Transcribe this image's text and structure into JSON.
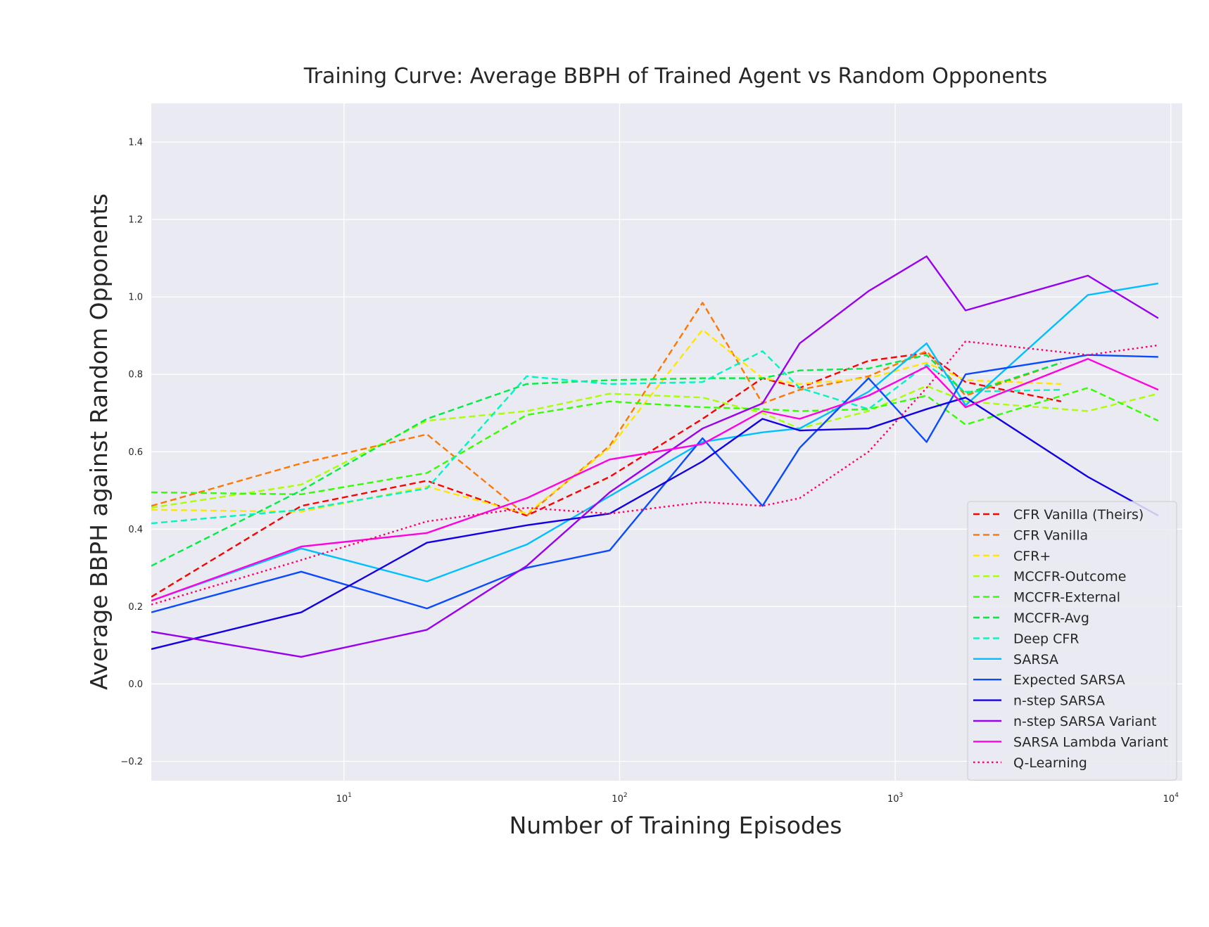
{
  "chart_data": {
    "type": "line",
    "title": "Training Curve: Average BBPH of Trained Agent vs Random Opponents",
    "xlabel": "Number of Training Episodes",
    "ylabel": "Average BBPH against Random Opponents",
    "xscale": "log",
    "xlim": [
      2,
      11000
    ],
    "ylim": [
      -0.25,
      1.5
    ],
    "xticks": [
      {
        "value": 10,
        "base": "10",
        "exp": "1"
      },
      {
        "value": 100,
        "base": "10",
        "exp": "2"
      },
      {
        "value": 1000,
        "base": "10",
        "exp": "3"
      },
      {
        "value": 10000,
        "base": "10",
        "exp": "4"
      }
    ],
    "yticks": [
      {
        "value": -0.2,
        "label": "−0.2"
      },
      {
        "value": 0.0,
        "label": "0.0"
      },
      {
        "value": 0.2,
        "label": "0.2"
      },
      {
        "value": 0.4,
        "label": "0.4"
      },
      {
        "value": 0.6,
        "label": "0.6"
      },
      {
        "value": 0.8,
        "label": "0.8"
      },
      {
        "value": 1.0,
        "label": "1.0"
      },
      {
        "value": 1.2,
        "label": "1.2"
      },
      {
        "value": 1.4,
        "label": "1.4"
      }
    ],
    "grid": true,
    "legend_position": "lower right",
    "series": [
      {
        "name": "CFR Vanilla (Theirs)",
        "color": "#ff0000",
        "dash": "dashed",
        "x": [
          2,
          7,
          20,
          46,
          92,
          200,
          330,
          450,
          800,
          1300,
          1800,
          4000
        ],
        "y": [
          0.225,
          0.46,
          0.525,
          0.435,
          0.535,
          0.685,
          0.79,
          0.765,
          0.835,
          0.855,
          0.78,
          0.73
        ]
      },
      {
        "name": "CFR Vanilla",
        "color": "#ff7700",
        "dash": "dashed",
        "x": [
          2,
          7,
          20,
          46,
          92,
          200,
          330,
          450,
          800,
          1300,
          1800,
          4000
        ],
        "y": [
          0.46,
          0.57,
          0.645,
          0.435,
          0.615,
          0.985,
          0.725,
          0.76,
          0.795,
          0.86,
          0.745,
          0.83
        ]
      },
      {
        "name": "CFR+",
        "color": "#ffe600",
        "dash": "dashed",
        "x": [
          2,
          7,
          20,
          46,
          92,
          200,
          330,
          450,
          800,
          1300,
          1800,
          4000
        ],
        "y": [
          0.45,
          0.445,
          0.51,
          0.44,
          0.61,
          0.915,
          0.79,
          0.775,
          0.79,
          0.83,
          0.785,
          0.775
        ]
      },
      {
        "name": "MCCFR-Outcome",
        "color": "#aaff00",
        "dash": "dashed",
        "x": [
          2,
          7,
          20,
          46,
          92,
          200,
          330,
          450,
          800,
          1300,
          1800,
          5000,
          9000
        ],
        "y": [
          0.455,
          0.515,
          0.68,
          0.705,
          0.75,
          0.74,
          0.7,
          0.66,
          0.705,
          0.77,
          0.73,
          0.705,
          0.75
        ]
      },
      {
        "name": "MCCFR-External",
        "color": "#33ff00",
        "dash": "dashed",
        "x": [
          2,
          7,
          20,
          46,
          92,
          200,
          330,
          450,
          800,
          1300,
          1800,
          5000,
          9000
        ],
        "y": [
          0.495,
          0.49,
          0.545,
          0.695,
          0.73,
          0.715,
          0.71,
          0.705,
          0.71,
          0.745,
          0.67,
          0.765,
          0.68
        ]
      },
      {
        "name": "MCCFR-Avg",
        "color": "#00ee44",
        "dash": "dashed",
        "x": [
          2,
          7,
          20,
          46,
          92,
          200,
          330,
          450,
          800,
          1300,
          1800,
          4000
        ],
        "y": [
          0.305,
          0.5,
          0.685,
          0.775,
          0.785,
          0.79,
          0.79,
          0.81,
          0.815,
          0.85,
          0.75,
          0.83
        ]
      },
      {
        "name": "Deep CFR",
        "color": "#00f5c0",
        "dash": "dashed",
        "x": [
          2,
          7,
          20,
          46,
          92,
          200,
          330,
          450,
          800,
          1300,
          1800,
          4000
        ],
        "y": [
          0.415,
          0.45,
          0.505,
          0.795,
          0.775,
          0.78,
          0.86,
          0.765,
          0.71,
          0.825,
          0.755,
          0.76
        ]
      },
      {
        "name": "SARSA",
        "color": "#00bfff",
        "dash": "solid",
        "x": [
          2,
          7,
          20,
          46,
          92,
          200,
          330,
          450,
          800,
          1300,
          1800,
          5000,
          9000
        ],
        "y": [
          0.215,
          0.35,
          0.265,
          0.36,
          0.485,
          0.625,
          0.65,
          0.66,
          0.755,
          0.88,
          0.72,
          1.005,
          1.035
        ]
      },
      {
        "name": "Expected SARSA",
        "color": "#0a4bff",
        "dash": "solid",
        "x": [
          2,
          7,
          20,
          46,
          92,
          200,
          330,
          450,
          800,
          1300,
          1800,
          5000,
          9000
        ],
        "y": [
          0.185,
          0.29,
          0.195,
          0.3,
          0.345,
          0.635,
          0.46,
          0.61,
          0.79,
          0.625,
          0.8,
          0.85,
          0.845
        ]
      },
      {
        "name": "n-step SARSA",
        "color": "#1400e6",
        "dash": "solid",
        "x": [
          2,
          7,
          20,
          46,
          92,
          200,
          330,
          450,
          800,
          1300,
          1800,
          5000,
          9000
        ],
        "y": [
          0.09,
          0.185,
          0.365,
          0.41,
          0.44,
          0.575,
          0.685,
          0.655,
          0.66,
          0.71,
          0.74,
          0.535,
          0.435
        ]
      },
      {
        "name": "n-step SARSA Variant",
        "color": "#9900f0",
        "dash": "solid",
        "x": [
          2,
          7,
          20,
          46,
          92,
          200,
          330,
          450,
          800,
          1300,
          1800,
          5000,
          9000
        ],
        "y": [
          0.135,
          0.07,
          0.14,
          0.305,
          0.495,
          0.66,
          0.725,
          0.88,
          1.015,
          1.105,
          0.965,
          1.055,
          0.945
        ]
      },
      {
        "name": "SARSA Lambda Variant",
        "color": "#ff00e0",
        "dash": "solid",
        "x": [
          2,
          7,
          20,
          46,
          92,
          200,
          330,
          450,
          800,
          1300,
          1800,
          5000,
          9000
        ],
        "y": [
          0.215,
          0.355,
          0.39,
          0.48,
          0.58,
          0.62,
          0.705,
          0.685,
          0.745,
          0.82,
          0.715,
          0.84,
          0.76
        ]
      },
      {
        "name": "Q-Learning",
        "color": "#ff0066",
        "dash": "dotted",
        "x": [
          2,
          7,
          20,
          46,
          92,
          200,
          330,
          450,
          800,
          1300,
          1800,
          5000,
          9000
        ],
        "y": [
          0.205,
          0.32,
          0.42,
          0.455,
          0.44,
          0.47,
          0.46,
          0.48,
          0.6,
          0.765,
          0.885,
          0.85,
          0.875
        ]
      }
    ]
  }
}
